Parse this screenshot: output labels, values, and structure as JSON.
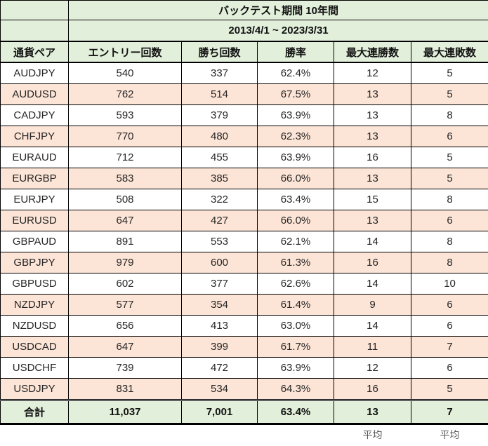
{
  "chart_data": {
    "type": "table",
    "title": "バックテスト期間 10年間",
    "subtitle": "2013/4/1 ~ 2023/3/31",
    "columns": [
      "通貨ペア",
      "エントリー回数",
      "勝ち回数",
      "勝率",
      "最大連勝数",
      "最大連敗数"
    ],
    "rows": [
      [
        "AUDJPY",
        "540",
        "337",
        "62.4%",
        "12",
        "5"
      ],
      [
        "AUDUSD",
        "762",
        "514",
        "67.5%",
        "13",
        "5"
      ],
      [
        "CADJPY",
        "593",
        "379",
        "63.9%",
        "13",
        "8"
      ],
      [
        "CHFJPY",
        "770",
        "480",
        "62.3%",
        "13",
        "6"
      ],
      [
        "EURAUD",
        "712",
        "455",
        "63.9%",
        "16",
        "5"
      ],
      [
        "EURGBP",
        "583",
        "385",
        "66.0%",
        "13",
        "5"
      ],
      [
        "EURJPY",
        "508",
        "322",
        "63.4%",
        "15",
        "8"
      ],
      [
        "EURUSD",
        "647",
        "427",
        "66.0%",
        "13",
        "6"
      ],
      [
        "GBPAUD",
        "891",
        "553",
        "62.1%",
        "14",
        "8"
      ],
      [
        "GBPJPY",
        "979",
        "600",
        "61.3%",
        "16",
        "8"
      ],
      [
        "GBPUSD",
        "602",
        "377",
        "62.6%",
        "14",
        "10"
      ],
      [
        "NZDJPY",
        "577",
        "354",
        "61.4%",
        "9",
        "6"
      ],
      [
        "NZDUSD",
        "656",
        "413",
        "63.0%",
        "14",
        "6"
      ],
      [
        "USDCAD",
        "647",
        "399",
        "61.7%",
        "11",
        "7"
      ],
      [
        "USDCHF",
        "739",
        "472",
        "63.9%",
        "12",
        "6"
      ],
      [
        "USDJPY",
        "831",
        "534",
        "64.3%",
        "16",
        "5"
      ]
    ],
    "total_row": [
      "合計",
      "11,037",
      "7,001",
      "63.4%",
      "13",
      "7"
    ],
    "average_labels": {
      "max_win_streak": "平均",
      "max_lose_streak": "平均"
    }
  },
  "colors": {
    "header_green": "#e2efda",
    "row_pink": "#fce4d6",
    "row_white": "#ffffff",
    "border": "#000000",
    "average_label_text": "#595959"
  }
}
